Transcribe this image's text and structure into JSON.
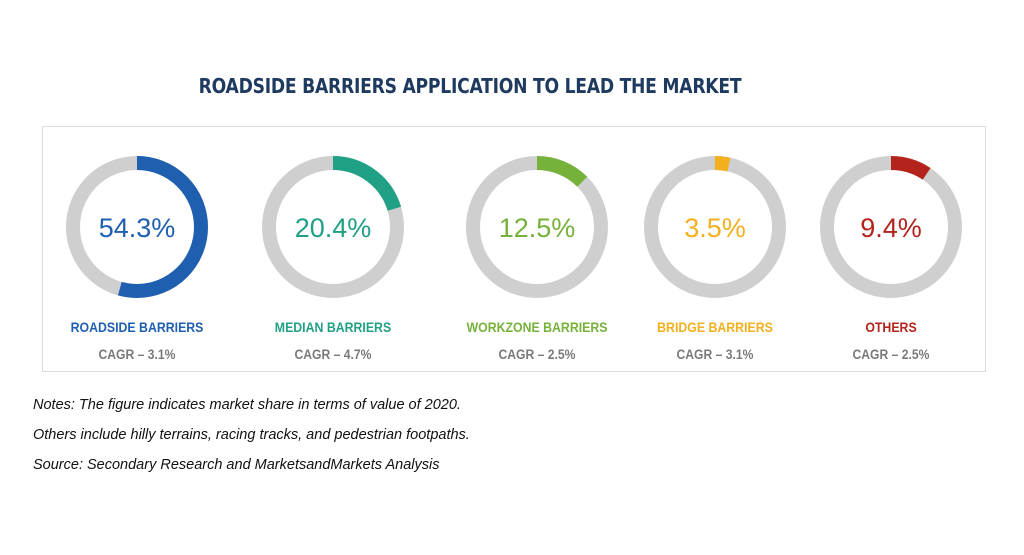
{
  "title": "ROADSIDE BARRIERS APPLICATION TO LEAD THE MARKET",
  "colors": {
    "track": "#cfcfcf",
    "roadside": "#1f5fb0",
    "median": "#20a085",
    "workzone": "#76b23a",
    "bridge": "#f2b01e",
    "others": "#b4231c"
  },
  "chart_data": {
    "type": "pie",
    "variant": "donut",
    "title": "ROADSIDE BARRIERS APPLICATION TO LEAD THE MARKET",
    "categories": [
      "ROADSIDE BARRIERS",
      "MEDIAN BARRIERS",
      "WORKZONE BARRIERS",
      "BRIDGE BARRIERS",
      "OTHERS"
    ],
    "values": [
      54.3,
      20.4,
      12.5,
      3.5,
      9.4
    ],
    "value_labels": [
      "54.3%",
      "20.4%",
      "12.5%",
      "3.5%",
      "9.4%"
    ],
    "cagr_labels": [
      "CAGR – 3.1%",
      "CAGR – 4.7%",
      "CAGR – 2.5%",
      "CAGR – 3.1%",
      "CAGR – 2.5%"
    ],
    "colors": [
      "#1f5fb0",
      "#20a085",
      "#76b23a",
      "#f2b01e",
      "#b4231c"
    ]
  },
  "notes": [
    "Notes: The figure indicates market share in terms of value of 2020.",
    "Others include hilly terrains, racing tracks, and pedestrian footpaths.",
    "Source: Secondary Research and MarketsandMarkets Analysis"
  ]
}
